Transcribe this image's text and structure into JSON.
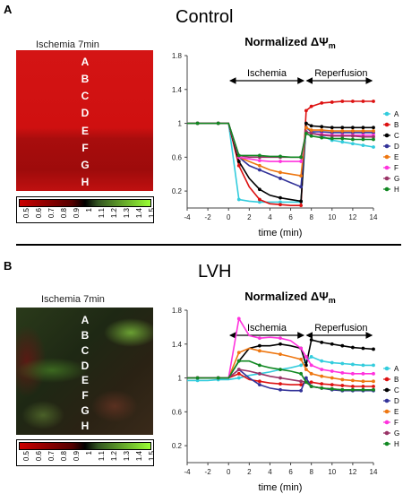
{
  "panels": [
    {
      "letter": "A",
      "title": "Control",
      "image": {
        "title": "Ischemia 7min",
        "labels": [
          "A",
          "B",
          "C",
          "D",
          "E",
          "F",
          "G",
          "H"
        ],
        "tone": "red"
      }
    },
    {
      "letter": "B",
      "title": "LVH",
      "image": {
        "title": "Ischemia 7min",
        "labels": [
          "A",
          "B",
          "C",
          "D",
          "E",
          "F",
          "G",
          "H"
        ],
        "tone": "mixed"
      }
    }
  ],
  "colorbar": {
    "ticks": [
      "0.5",
      "0.6",
      "0.7",
      "0.8",
      "0.9",
      "1",
      "1.1",
      "1.2",
      "1.3",
      "1.4",
      "1.5"
    ],
    "low_color": "#cc0000",
    "mid_color": "#000000",
    "high_color": "#99ff33"
  },
  "series_colors": {
    "A": "#33ccdd",
    "B": "#dd1111",
    "C": "#000000",
    "D": "#333399",
    "E": "#ee7711",
    "F": "#ff33dd",
    "G": "#993366",
    "H": "#118822"
  },
  "chart_data": [
    {
      "type": "line",
      "title": "Normalized ΔΨ",
      "title_subscript": "m",
      "xlabel": "time (min)",
      "ylabel": "",
      "xlim": [
        -4,
        14
      ],
      "ylim": [
        0,
        1.8
      ],
      "xticks": [
        "-4",
        "-2",
        "0",
        "2",
        "4",
        "6",
        "8",
        "10",
        "12",
        "14"
      ],
      "yticks": [
        "0.2",
        "0.6",
        "1",
        "1.4",
        "1.8"
      ],
      "annotations": [
        "Ischemia",
        "Reperfusion"
      ],
      "legend_position": "right",
      "series": [
        {
          "name": "A",
          "x": [
            -4,
            -3,
            -2,
            -1,
            0,
            1,
            2,
            3,
            4,
            5,
            6,
            7,
            7.5,
            8,
            9,
            10,
            11,
            12,
            13,
            14
          ],
          "y": [
            1,
            1,
            1,
            1,
            1,
            0.1,
            0.08,
            0.07,
            0.07,
            0.07,
            0.07,
            0.07,
            0.95,
            0.9,
            0.85,
            0.8,
            0.78,
            0.76,
            0.74,
            0.72
          ]
        },
        {
          "name": "B",
          "x": [
            -4,
            -3,
            -2,
            -1,
            0,
            1,
            2,
            3,
            4,
            5,
            6,
            7,
            7.5,
            8,
            9,
            10,
            11,
            12,
            13,
            14
          ],
          "y": [
            1,
            1,
            1,
            1,
            1,
            0.5,
            0.25,
            0.1,
            0.05,
            0.04,
            0.03,
            0.03,
            1.15,
            1.2,
            1.24,
            1.25,
            1.26,
            1.26,
            1.26,
            1.26
          ]
        },
        {
          "name": "C",
          "x": [
            -4,
            -3,
            -2,
            -1,
            0,
            1,
            2,
            3,
            4,
            5,
            6,
            7,
            7.5,
            8,
            9,
            10,
            11,
            12,
            13,
            14
          ],
          "y": [
            1,
            1,
            1,
            1,
            1,
            0.55,
            0.35,
            0.22,
            0.15,
            0.12,
            0.1,
            0.08,
            1.0,
            0.97,
            0.96,
            0.95,
            0.95,
            0.95,
            0.95,
            0.95
          ]
        },
        {
          "name": "D",
          "x": [
            -4,
            -3,
            -2,
            -1,
            0,
            1,
            2,
            3,
            4,
            5,
            6,
            7,
            7.5,
            8,
            9,
            10,
            11,
            12,
            13,
            14
          ],
          "y": [
            1,
            1,
            1,
            1,
            1,
            0.6,
            0.5,
            0.45,
            0.4,
            0.35,
            0.3,
            0.25,
            0.95,
            0.9,
            0.9,
            0.89,
            0.89,
            0.89,
            0.89,
            0.89
          ]
        },
        {
          "name": "E",
          "x": [
            -4,
            -3,
            -2,
            -1,
            0,
            1,
            2,
            3,
            4,
            5,
            6,
            7,
            7.5,
            8,
            9,
            10,
            11,
            12,
            13,
            14
          ],
          "y": [
            1,
            1,
            1,
            1,
            1,
            0.6,
            0.55,
            0.5,
            0.45,
            0.42,
            0.4,
            0.38,
            0.95,
            0.92,
            0.92,
            0.91,
            0.91,
            0.91,
            0.91,
            0.91
          ]
        },
        {
          "name": "F",
          "x": [
            -4,
            -3,
            -2,
            -1,
            0,
            1,
            2,
            3,
            4,
            5,
            6,
            7,
            7.5,
            8,
            9,
            10,
            11,
            12,
            13,
            14
          ],
          "y": [
            1,
            1,
            1,
            1,
            1,
            0.6,
            0.58,
            0.56,
            0.55,
            0.55,
            0.55,
            0.55,
            0.9,
            0.88,
            0.87,
            0.86,
            0.86,
            0.86,
            0.86,
            0.86
          ]
        },
        {
          "name": "G",
          "x": [
            -4,
            -3,
            -2,
            -1,
            0,
            1,
            2,
            3,
            4,
            5,
            6,
            7,
            7.5,
            8,
            9,
            10,
            11,
            12,
            13,
            14
          ],
          "y": [
            1,
            1,
            1,
            1,
            1,
            0.62,
            0.6,
            0.6,
            0.6,
            0.6,
            0.6,
            0.6,
            0.9,
            0.88,
            0.86,
            0.85,
            0.85,
            0.85,
            0.84,
            0.84
          ]
        },
        {
          "name": "H",
          "x": [
            -4,
            -3,
            -2,
            -1,
            0,
            1,
            2,
            3,
            4,
            5,
            6,
            7,
            7.5,
            8,
            9,
            10,
            11,
            12,
            13,
            14
          ],
          "y": [
            1,
            1,
            1,
            1,
            1,
            0.62,
            0.62,
            0.62,
            0.61,
            0.61,
            0.6,
            0.6,
            0.88,
            0.85,
            0.83,
            0.82,
            0.82,
            0.81,
            0.81,
            0.81
          ]
        }
      ]
    },
    {
      "type": "line",
      "title": "Normalized ΔΨ",
      "title_subscript": "m",
      "xlabel": "time (min)",
      "ylabel": "",
      "xlim": [
        -4,
        14
      ],
      "ylim": [
        0,
        1.8
      ],
      "xticks": [
        "-4",
        "-2",
        "0",
        "2",
        "4",
        "6",
        "8",
        "10",
        "12",
        "14"
      ],
      "yticks": [
        "0.2",
        "0.6",
        "1",
        "1.4",
        "1.8"
      ],
      "annotations": [
        "Ischemia",
        "Reperfusion"
      ],
      "legend_position": "right",
      "series": [
        {
          "name": "A",
          "x": [
            -4,
            -3,
            -2,
            -1,
            0,
            1,
            2,
            3,
            4,
            5,
            6,
            7,
            7.5,
            8,
            9,
            10,
            11,
            12,
            13,
            14
          ],
          "y": [
            0.97,
            0.97,
            0.97,
            0.98,
            0.98,
            1.0,
            1.03,
            1.05,
            1.07,
            1.1,
            1.12,
            1.15,
            1.2,
            1.25,
            1.2,
            1.18,
            1.17,
            1.16,
            1.15,
            1.15
          ]
        },
        {
          "name": "B",
          "x": [
            -4,
            -3,
            -2,
            -1,
            0,
            1,
            2,
            3,
            4,
            5,
            6,
            7,
            7.5,
            8,
            9,
            10,
            11,
            12,
            13,
            14
          ],
          "y": [
            1,
            1,
            1,
            1,
            1,
            1.05,
            0.98,
            0.96,
            0.94,
            0.93,
            0.92,
            0.92,
            0.95,
            0.95,
            0.93,
            0.92,
            0.91,
            0.9,
            0.9,
            0.9
          ]
        },
        {
          "name": "C",
          "x": [
            -4,
            -3,
            -2,
            -1,
            0,
            1,
            2,
            3,
            4,
            5,
            6,
            7,
            7.5,
            8,
            9,
            10,
            11,
            12,
            13,
            14
          ],
          "y": [
            1,
            1,
            1,
            1,
            1,
            1.2,
            1.35,
            1.38,
            1.38,
            1.4,
            1.38,
            1.35,
            1.15,
            1.45,
            1.42,
            1.4,
            1.38,
            1.36,
            1.35,
            1.34
          ]
        },
        {
          "name": "D",
          "x": [
            -4,
            -3,
            -2,
            -1,
            0,
            1,
            2,
            3,
            4,
            5,
            6,
            7,
            7.5,
            8,
            9,
            10,
            11,
            12,
            13,
            14
          ],
          "y": [
            1,
            1,
            1,
            1,
            1,
            1.1,
            1.0,
            0.92,
            0.88,
            0.86,
            0.85,
            0.85,
            1.0,
            0.9,
            0.88,
            0.86,
            0.85,
            0.85,
            0.85,
            0.85
          ]
        },
        {
          "name": "E",
          "x": [
            -4,
            -3,
            -2,
            -1,
            0,
            1,
            2,
            3,
            4,
            5,
            6,
            7,
            7.5,
            8,
            9,
            10,
            11,
            12,
            13,
            14
          ],
          "y": [
            1,
            1,
            1,
            1,
            1,
            1.3,
            1.35,
            1.32,
            1.3,
            1.28,
            1.25,
            1.22,
            1.1,
            1.05,
            1.02,
            1.0,
            0.98,
            0.97,
            0.96,
            0.96
          ]
        },
        {
          "name": "F",
          "x": [
            -4,
            -3,
            -2,
            -1,
            0,
            1,
            2,
            3,
            4,
            5,
            6,
            7,
            7.5,
            8,
            9,
            10,
            11,
            12,
            13,
            14
          ],
          "y": [
            1,
            1,
            1,
            1,
            1,
            1.7,
            1.5,
            1.47,
            1.48,
            1.47,
            1.44,
            1.35,
            1.25,
            1.15,
            1.1,
            1.08,
            1.06,
            1.05,
            1.05,
            1.05
          ]
        },
        {
          "name": "G",
          "x": [
            -4,
            -3,
            -2,
            -1,
            0,
            1,
            2,
            3,
            4,
            5,
            6,
            7,
            7.5,
            8,
            9,
            10,
            11,
            12,
            13,
            14
          ],
          "y": [
            1,
            1,
            1,
            1,
            1,
            1.1,
            1.08,
            1.05,
            1.02,
            1.0,
            0.98,
            0.96,
            0.95,
            0.9,
            0.88,
            0.87,
            0.86,
            0.86,
            0.86,
            0.86
          ]
        },
        {
          "name": "H",
          "x": [
            -4,
            -3,
            -2,
            -1,
            0,
            1,
            2,
            3,
            4,
            5,
            6,
            7,
            7.5,
            8,
            9,
            10,
            11,
            12,
            13,
            14
          ],
          "y": [
            1,
            1,
            1,
            1,
            1,
            1.2,
            1.2,
            1.15,
            1.12,
            1.1,
            1.08,
            1.05,
            0.95,
            0.9,
            0.88,
            0.87,
            0.86,
            0.86,
            0.86,
            0.86
          ]
        }
      ]
    }
  ]
}
